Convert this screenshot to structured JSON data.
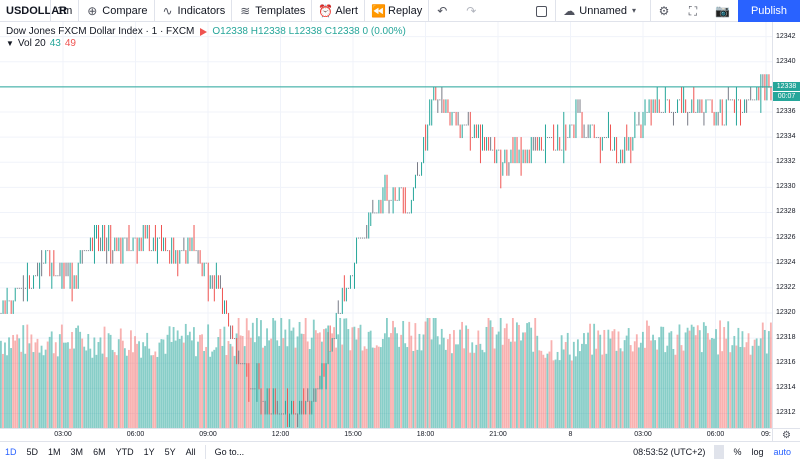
{
  "toolbar": {
    "symbol": "USDOLLAR",
    "interval": "1m",
    "compare": "Compare",
    "indicators": "Indicators",
    "templates": "Templates",
    "alert": "Alert",
    "replay": "Replay",
    "layout_name": "Unnamed",
    "publish": "Publish"
  },
  "legend": {
    "title": "Dow Jones FXCM Dollar Index · 1 · FXCM",
    "ohlc": "O12338 H12338 L12338 C12338 0 (0.00%)",
    "vol_label": "Vol 20",
    "vol_value_1": "43",
    "vol_value_2": "49"
  },
  "price_axis": {
    "labels": [
      "12342",
      "12340",
      "12338",
      "12336",
      "12334",
      "12332",
      "12330",
      "12328",
      "12326",
      "12324",
      "12322",
      "12320",
      "12318",
      "12316",
      "12314",
      "12312"
    ],
    "current_price": "12338",
    "countdown": "00:07"
  },
  "time_axis": {
    "labels": [
      "03:00",
      "06:00",
      "09:00",
      "12:00",
      "15:00",
      "18:00",
      "21:00",
      "8",
      "03:00",
      "06:00",
      "09:"
    ]
  },
  "bottom_bar": {
    "ranges": [
      "1D",
      "5D",
      "1M",
      "3M",
      "6M",
      "YTD",
      "1Y",
      "5Y",
      "All"
    ],
    "goto": "Go to...",
    "clock": "08:53:52 (UTC+2)",
    "percent": "%",
    "log": "log",
    "auto": "auto"
  },
  "colors": {
    "up": "#26a69a",
    "down": "#ef5350",
    "accent": "#2962ff"
  },
  "chart_data": {
    "type": "bar",
    "title": "",
    "series": [
      {
        "type": "ohlc",
        "x": [
          "00:00",
          "01:00",
          "02:00",
          "03:00",
          "04:00",
          "05:00",
          "06:00",
          "07:00",
          "08:00",
          "09:00",
          "10:00",
          "11:00",
          "12:00",
          "13:00",
          "14:00",
          "15:00",
          "16:00",
          "17:00",
          "18:00",
          "19:00",
          "20:00",
          "21:00",
          "22:00",
          "23:00",
          "8 00:00",
          "01:00",
          "02:00",
          "03:00",
          "04:00",
          "05:00",
          "06:00",
          "07:00",
          "08:00"
        ],
        "close": [
          12320,
          12322,
          12324,
          12323,
          12326,
          12325,
          12326,
          12325,
          12325,
          12322,
          12316,
          12313,
          12312,
          12313,
          12320,
          12326,
          12330,
          12329,
          12337,
          12335,
          12334,
          12332,
          12333,
          12334,
          12335,
          12334,
          12333,
          12337,
          12336,
          12337,
          12336,
          12337,
          12338
        ]
      },
      {
        "type": "volume",
        "values": [
          30,
          30,
          30,
          30,
          30,
          30,
          30,
          30,
          30,
          30,
          33,
          33,
          33,
          33,
          33,
          33,
          33,
          33,
          33,
          32,
          32,
          32,
          32,
          28,
          28,
          30,
          31,
          31,
          31,
          31,
          31,
          31,
          31
        ]
      }
    ],
    "ylim": [
      12311,
      12343
    ],
    "grid": true
  }
}
